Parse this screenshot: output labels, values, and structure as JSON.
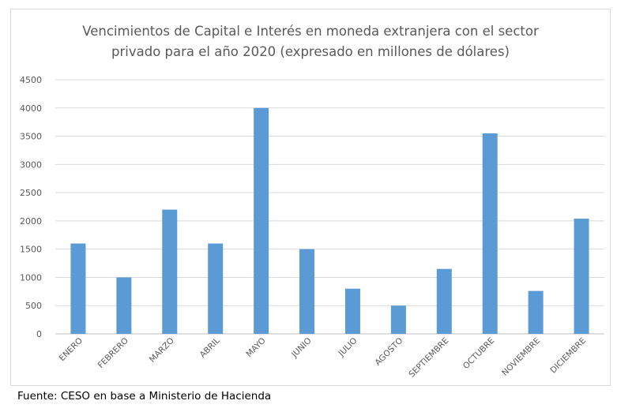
{
  "chart_data": {
    "type": "bar",
    "title_lines": [
      "Vencimientos de Capital e Interés en moneda extranjera con el sector",
      "privado para el año 2020 (expresado en millones de dólares)"
    ],
    "categories": [
      "ENERO",
      "FEBRERO",
      "MARZO",
      "ABRIL",
      "MAYO",
      "JUNIO",
      "JULIO",
      "AGOSTO",
      "SEPTIEMBRE",
      "OCTUBRE",
      "NOVIEMBRE",
      "DICIEMBRE"
    ],
    "series": [
      {
        "name": "Vencimientos",
        "values": [
          1600,
          1000,
          2200,
          1600,
          4000,
          1500,
          800,
          500,
          1150,
          3550,
          760,
          2040
        ]
      }
    ],
    "yticks": [
      "0",
      "500",
      "1000",
      "1500",
      "2000",
      "2500",
      "3000",
      "3500",
      "4000",
      "4500"
    ],
    "ylim": [
      0,
      4500
    ],
    "grid": true,
    "bar_color": "#5b9bd5",
    "xlabel": "",
    "ylabel": ""
  },
  "source_note": "Fuente: CESO en base a Ministerio de Hacienda"
}
